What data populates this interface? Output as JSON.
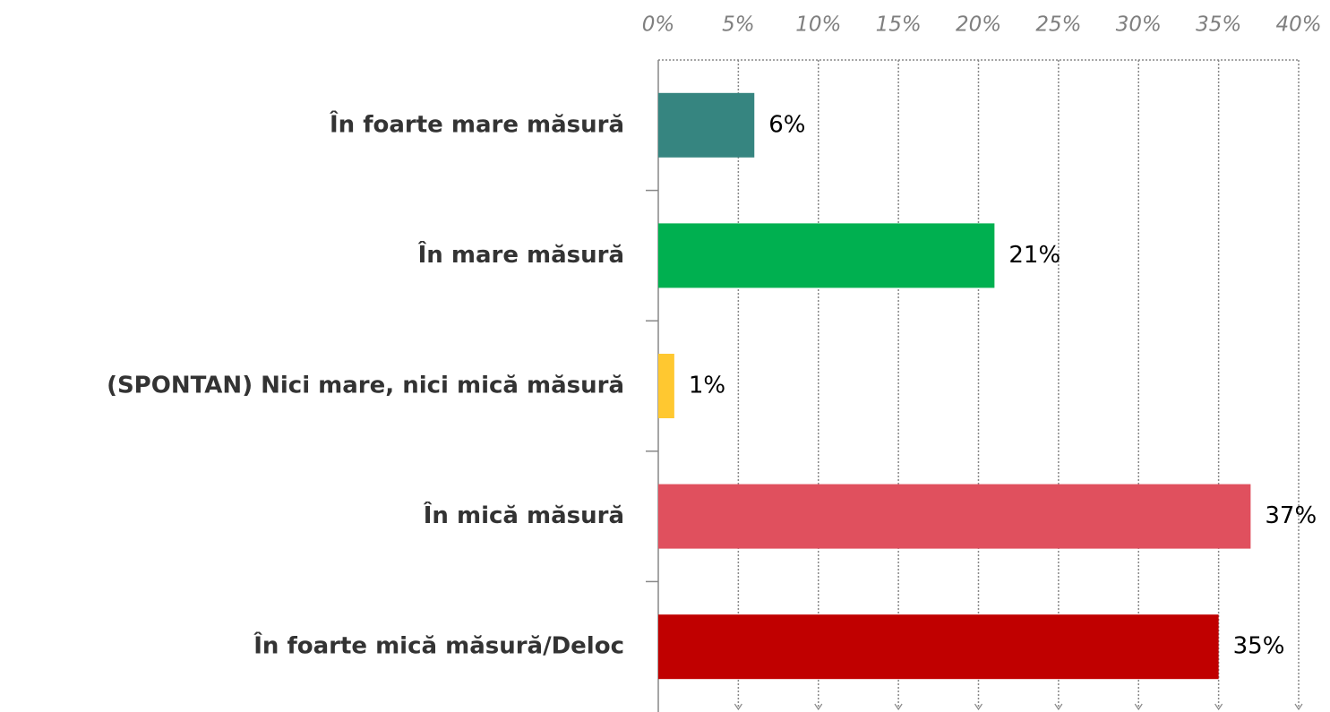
{
  "chart_data": {
    "type": "barh",
    "categories": [
      "În foarte mare măsură",
      "În mare măsură",
      "(SPONTAN) Nici mare, nici mică măsură",
      "În mică măsură",
      "În foarte mică măsură/Deloc"
    ],
    "values": [
      6,
      21,
      1,
      37,
      35
    ],
    "value_labels": [
      "6%",
      "21%",
      "1%",
      "37%",
      "35%"
    ],
    "colors": [
      "#368580",
      "#00b050",
      "#ffc830",
      "#e0505e",
      "#c00000"
    ],
    "xlim": [
      0,
      40
    ],
    "xticks": [
      {
        "value": 0,
        "label": "0%"
      },
      {
        "value": 5,
        "label": "5%"
      },
      {
        "value": 10,
        "label": "10%"
      },
      {
        "value": 15,
        "label": "15%"
      },
      {
        "value": 20,
        "label": "20%"
      },
      {
        "value": 25,
        "label": "25%"
      },
      {
        "value": 30,
        "label": "30%"
      },
      {
        "value": 35,
        "label": "35%"
      },
      {
        "value": 40,
        "label": "40%"
      }
    ],
    "grid": true
  }
}
